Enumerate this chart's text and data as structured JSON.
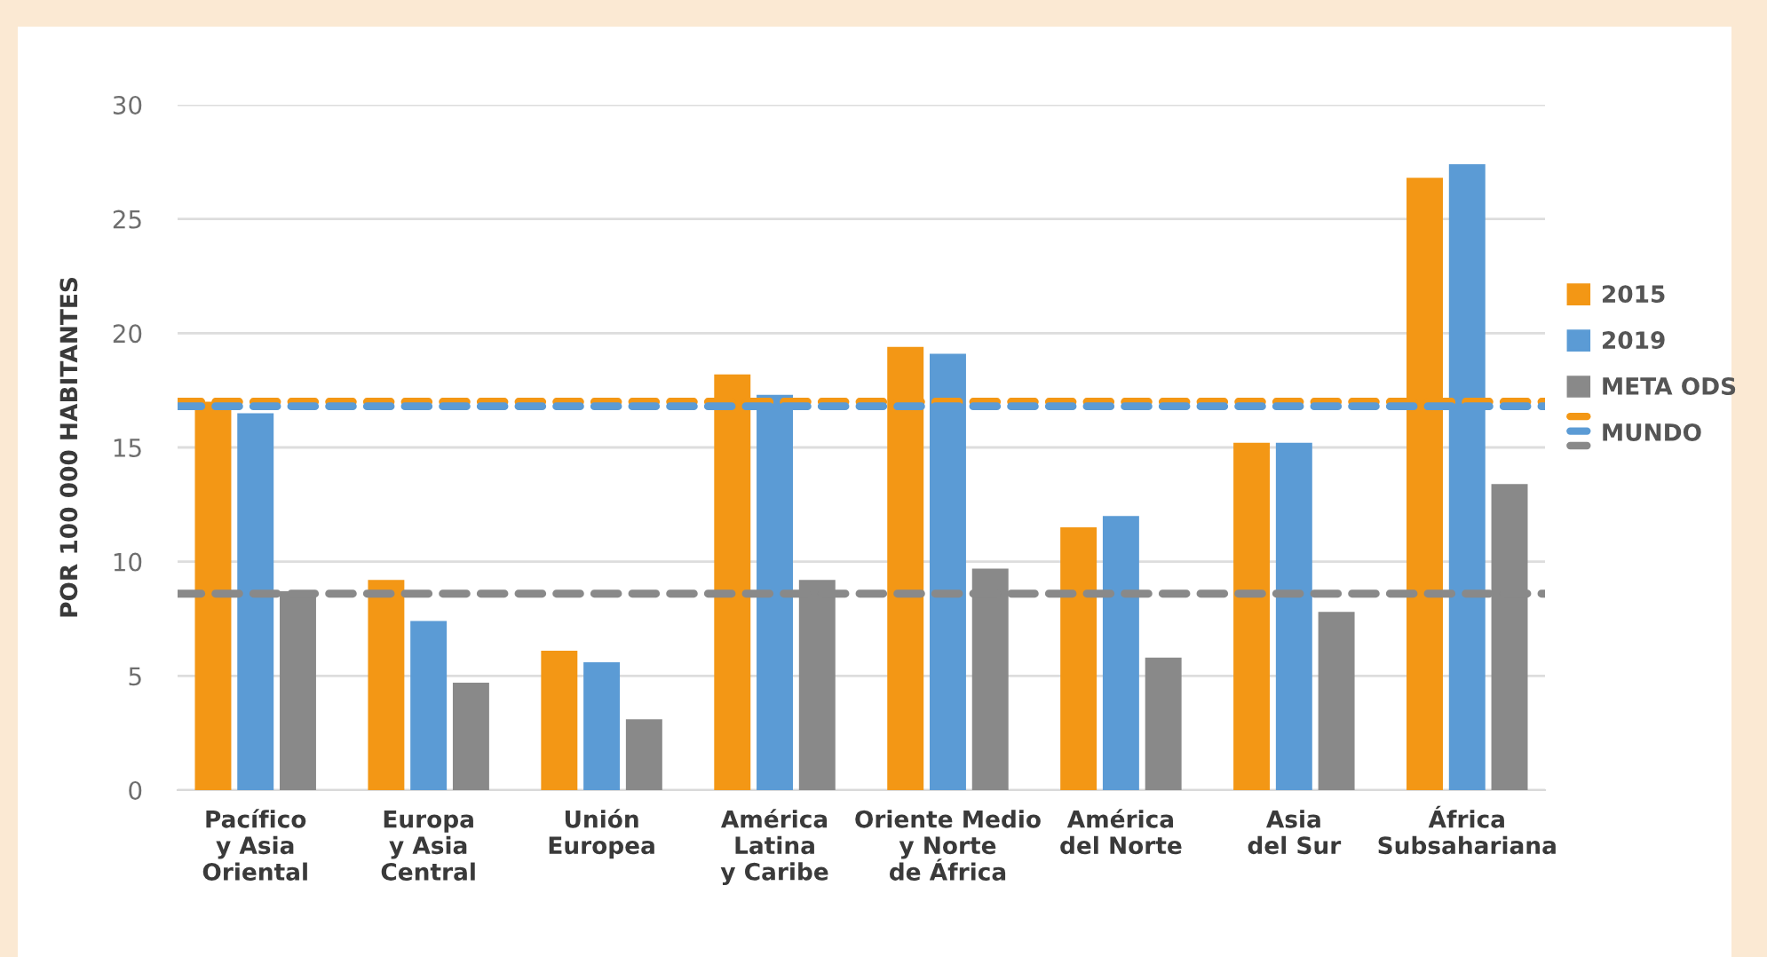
{
  "chart_data": {
    "type": "bar",
    "ylabel": "POR 100 000 HABITANTES",
    "categories": [
      "Pacífico\ny Asia\nOriental",
      "Europa\ny Asia\nCentral",
      "Unión\nEuropea",
      "América\nLatina\ny Caribe",
      "Oriente Medio\ny Norte\nde África",
      "América\ndel Norte",
      "Asia\ndel Sur",
      "África\nSubsahariana"
    ],
    "series": [
      {
        "name": "2015",
        "color": "#f39715",
        "values": [
          17.0,
          9.2,
          6.1,
          18.2,
          19.4,
          11.5,
          15.2,
          26.8
        ]
      },
      {
        "name": "2019",
        "color": "#5b9bd5",
        "values": [
          16.5,
          7.4,
          5.6,
          17.3,
          19.1,
          12.0,
          15.2,
          27.4
        ]
      },
      {
        "name": "META ODS",
        "color": "#898989",
        "values": [
          8.7,
          4.7,
          3.1,
          9.2,
          9.7,
          5.8,
          7.8,
          13.4
        ]
      }
    ],
    "ref_lines": [
      {
        "axis": "y",
        "value": 17.0,
        "label": "MUNDO",
        "color": "#f39715",
        "line_style": "dashed"
      },
      {
        "axis": "y",
        "value": 16.8,
        "color": "#5b9bd5",
        "line_style": "dashed"
      },
      {
        "axis": "y",
        "value": 8.6,
        "color": "#898989",
        "line_style": "dashed"
      }
    ],
    "ylim": [
      0,
      30
    ],
    "yticks": [
      0,
      5,
      10,
      15,
      20,
      25,
      30
    ],
    "grid": "y",
    "legend": "right"
  }
}
